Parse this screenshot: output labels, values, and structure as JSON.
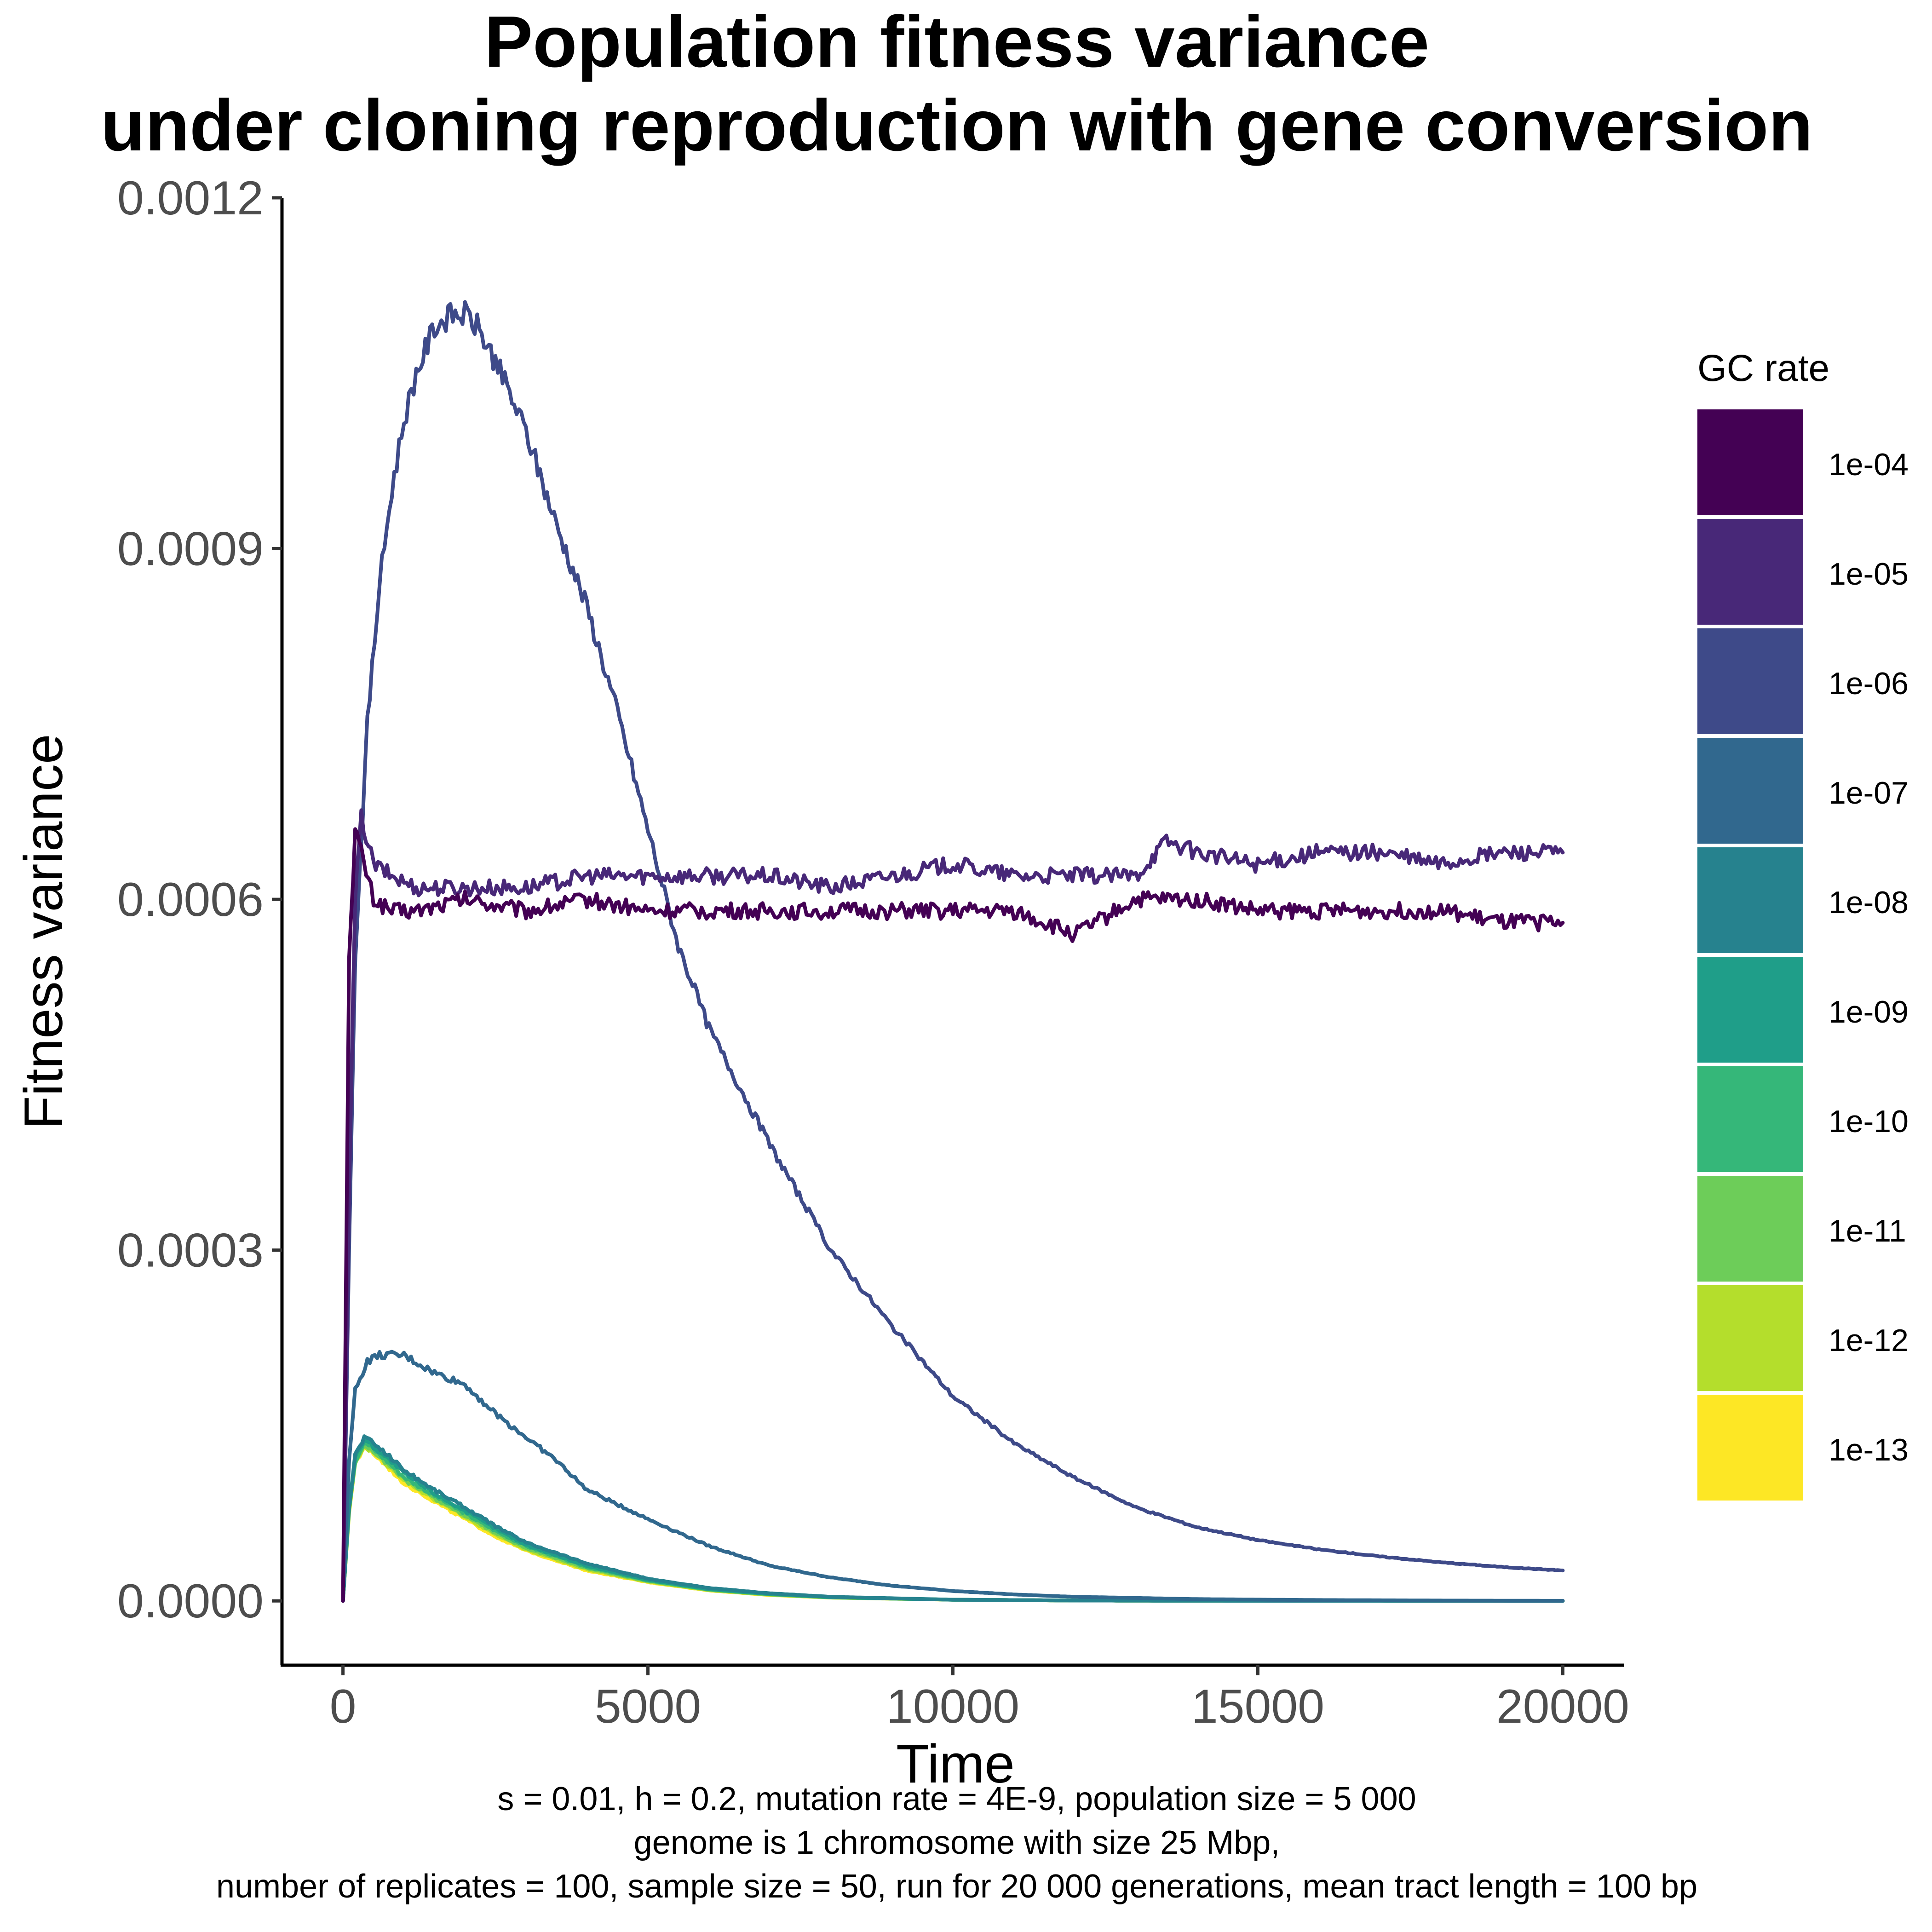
{
  "chart_data": {
    "type": "line",
    "title": [
      "Population fitness variance",
      "under cloning reproduction with gene conversion"
    ],
    "xlabel": "Time",
    "ylabel": "Fitness variance",
    "xlim": [
      -1000,
      21000
    ],
    "ylim": [
      -5.5e-05,
      0.0012
    ],
    "x_ticks": [
      0,
      5000,
      10000,
      15000,
      20000
    ],
    "x_tick_labels": [
      "0",
      "5000",
      "10000",
      "15000",
      "20000"
    ],
    "y_ticks": [
      0,
      0.0003,
      0.0006,
      0.0009,
      0.0012
    ],
    "y_tick_labels": [
      "0.0000",
      "0.0003",
      "0.0006",
      "0.0009",
      "0.0012"
    ],
    "grid": false,
    "legend": {
      "title": "GC rate",
      "position": "right"
    },
    "series": [
      {
        "name": "1e-04",
        "color": "#440154",
        "x": [
          0,
          100,
          200,
          300,
          500,
          800,
          1200,
          2000,
          3000,
          4000,
          5000,
          6000,
          7000,
          8000,
          9000,
          10000,
          11000,
          12000,
          13000,
          14000,
          15000,
          16000,
          17000,
          18000,
          19000,
          20000
        ],
        "y": [
          0,
          0.00055,
          0.00066,
          0.00064,
          0.0006,
          0.00059,
          0.00059,
          0.0006,
          0.00059,
          0.0006,
          0.00059,
          0.00059,
          0.00059,
          0.00059,
          0.00059,
          0.00059,
          0.00059,
          0.00057,
          0.0006,
          0.0006,
          0.00059,
          0.00059,
          0.00059,
          0.00059,
          0.00058,
          0.00058
        ]
      },
      {
        "name": "1e-05",
        "color": "#482878",
        "x": [
          0,
          100,
          200,
          300,
          500,
          800,
          1200,
          2000,
          3000,
          4000,
          5000,
          6000,
          7000,
          8000,
          9000,
          10000,
          11000,
          12000,
          13000,
          13500,
          14000,
          15000,
          16000,
          17000,
          18000,
          19000,
          20000
        ],
        "y": [
          0,
          0.00035,
          0.0006,
          0.00067,
          0.00063,
          0.00062,
          0.00061,
          0.00061,
          0.00061,
          0.00062,
          0.00062,
          0.00062,
          0.00062,
          0.00061,
          0.00062,
          0.00063,
          0.00062,
          0.00062,
          0.00062,
          0.00065,
          0.00064,
          0.00063,
          0.00064,
          0.00064,
          0.00063,
          0.00064,
          0.00064
        ]
      },
      {
        "name": "1e-06",
        "color": "#3E4A89",
        "x": [
          0,
          100,
          200,
          400,
          600,
          800,
          1000,
          1200,
          1500,
          1800,
          2000,
          2200,
          2500,
          3000,
          3500,
          4000,
          4500,
          5000,
          5500,
          6000,
          7000,
          8000,
          9000,
          10000,
          11000,
          12000,
          13000,
          14000,
          15000,
          16000,
          17000,
          18000,
          19000,
          20000
        ],
        "y": [
          0,
          0.0003,
          0.00055,
          0.00075,
          0.00087,
          0.00095,
          0.00101,
          0.00105,
          0.00109,
          0.0011,
          0.0011,
          0.00109,
          0.00106,
          0.001,
          0.00092,
          0.00085,
          0.00076,
          0.00066,
          0.00056,
          0.00049,
          0.00039,
          0.0003,
          0.000235,
          0.000175,
          0.000135,
          0.000105,
          8e-05,
          6.3e-05,
          5.2e-05,
          4.4e-05,
          3.8e-05,
          3.3e-05,
          2.9e-05,
          2.6e-05
        ]
      },
      {
        "name": "1e-07",
        "color": "#31688E",
        "x": [
          0,
          100,
          200,
          400,
          600,
          800,
          1000,
          1500,
          2000,
          2500,
          3000,
          3500,
          4000,
          5000,
          6000,
          7000,
          8000,
          9000,
          10000,
          11000,
          12000,
          14000,
          16000,
          18000,
          20000
        ],
        "y": [
          0,
          0.00012,
          0.00018,
          0.000205,
          0.00021,
          0.00021,
          0.00021,
          0.000195,
          0.000185,
          0.00016,
          0.00014,
          0.00012,
          9.5e-05,
          7e-05,
          4.7e-05,
          3e-05,
          2e-05,
          1.3e-05,
          8.5e-06,
          5.5e-06,
          3.5e-06,
          1.5e-06,
          7e-07,
          3e-07,
          1e-07
        ]
      },
      {
        "name": "1e-08",
        "color": "#26828E",
        "x": [
          0,
          100,
          200,
          350,
          500,
          800,
          1000,
          1500,
          2000,
          2500,
          3000,
          4000,
          5000,
          6000,
          7000,
          8000,
          10000,
          12000,
          15000,
          20000
        ],
        "y": [
          0,
          8e-05,
          0.000125,
          0.00014,
          0.000135,
          0.000122,
          0.000112,
          9.5e-05,
          8e-05,
          6.4e-05,
          5e-05,
          3.2e-05,
          1.9e-05,
          1.1e-05,
          6.5e-06,
          3.5e-06,
          1e-06,
          3e-07,
          1e-07,
          0
        ]
      },
      {
        "name": "1e-09",
        "color": "#1F9E89",
        "x": [
          0,
          100,
          200,
          350,
          500,
          800,
          1000,
          1500,
          2000,
          2500,
          3000,
          4000,
          5000,
          6000,
          7000,
          8000,
          10000,
          12000,
          15000,
          20000
        ],
        "y": [
          0,
          8e-05,
          0.000123,
          0.000138,
          0.000132,
          0.000119,
          0.000109,
          9.2e-05,
          7.7e-05,
          6.2e-05,
          4.8e-05,
          3e-05,
          1.8e-05,
          1e-05,
          6e-06,
          3.2e-06,
          1e-06,
          3e-07,
          1e-07,
          0
        ]
      },
      {
        "name": "1e-10",
        "color": "#35B779",
        "x": [
          0,
          100,
          200,
          350,
          500,
          800,
          1000,
          1500,
          2000,
          2500,
          3000,
          4000,
          5000,
          6000,
          7000,
          8000,
          10000,
          12000,
          15000,
          20000
        ],
        "y": [
          0,
          7.8e-05,
          0.00012,
          0.000136,
          0.00013,
          0.000116,
          0.000106,
          9e-05,
          7.5e-05,
          6e-05,
          4.7e-05,
          2.9e-05,
          1.75e-05,
          9.8e-06,
          5.8e-06,
          3e-06,
          1e-06,
          3e-07,
          1e-07,
          0
        ]
      },
      {
        "name": "1e-11",
        "color": "#6DCD59",
        "x": [
          0,
          100,
          200,
          350,
          500,
          800,
          1000,
          1500,
          2000,
          2500,
          3000,
          4000,
          5000,
          6000,
          7000,
          8000,
          10000,
          12000,
          15000,
          20000
        ],
        "y": [
          0,
          7.7e-05,
          0.000119,
          0.000134,
          0.000128,
          0.000114,
          0.000104,
          8.8e-05,
          7.3e-05,
          5.8e-05,
          4.5e-05,
          2.8e-05,
          1.7e-05,
          9.5e-06,
          5.5e-06,
          3e-06,
          1e-06,
          3e-07,
          1e-07,
          0
        ]
      },
      {
        "name": "1e-12",
        "color": "#B4DE2C",
        "x": [
          0,
          100,
          200,
          350,
          500,
          800,
          1000,
          1500,
          2000,
          2500,
          3000,
          4000,
          5000,
          6000,
          7000,
          8000,
          10000,
          12000,
          15000,
          20000
        ],
        "y": [
          0,
          7.6e-05,
          0.000118,
          0.000133,
          0.000127,
          0.000113,
          0.000103,
          8.7e-05,
          7.2e-05,
          5.7e-05,
          4.4e-05,
          2.7e-05,
          1.65e-05,
          9.2e-06,
          5.3e-06,
          2.9e-06,
          1e-06,
          3e-07,
          1e-07,
          0
        ]
      },
      {
        "name": "1e-13",
        "color": "#FDE725",
        "x": [
          0,
          100,
          200,
          350,
          500,
          800,
          1000,
          1500,
          2000,
          2500,
          3000,
          4000,
          5000,
          6000,
          7000,
          8000,
          10000,
          12000,
          15000,
          20000
        ],
        "y": [
          0,
          7.5e-05,
          0.000117,
          0.000132,
          0.000126,
          0.000111,
          0.000101,
          8.5e-05,
          7e-05,
          5.5e-05,
          4.3e-05,
          2.6e-05,
          1.6e-05,
          9e-06,
          5e-06,
          2.8e-06,
          1e-06,
          3e-07,
          1e-07,
          0
        ]
      }
    ],
    "caption": [
      "s = 0.01, h = 0.2, mutation rate = 4E-9, population size = 5 000",
      "genome is 1 chromosome with size 25 Mbp,",
      "number of replicates = 100, sample size = 50, run for 20 000 generations, mean tract length = 100 bp"
    ]
  }
}
